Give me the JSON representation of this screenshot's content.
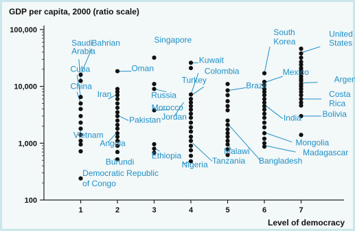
{
  "chart_data": {
    "type": "scatter",
    "ylabel": "GDP per capita, 2000 (ratio scale)",
    "xlabel": "Level of democracy",
    "y_scale": "log",
    "ylim": [
      100,
      100000
    ],
    "xlim": [
      0,
      7.6
    ],
    "x_ticks": [
      "1",
      "2",
      "3",
      "4",
      "5",
      "6",
      "7"
    ],
    "y_ticks": [
      "100",
      "1,000",
      "10,000",
      "100,000"
    ],
    "grid": false,
    "points": [
      {
        "x": 1,
        "y": 16000
      },
      {
        "x": 1,
        "y": 12500
      },
      {
        "x": 1,
        "y": 6500
      },
      {
        "x": 1,
        "y": 5000
      },
      {
        "x": 1,
        "y": 4000
      },
      {
        "x": 1,
        "y": 3000
      },
      {
        "x": 1,
        "y": 2300
      },
      {
        "x": 1,
        "y": 1800
      },
      {
        "x": 1,
        "y": 1400
      },
      {
        "x": 1,
        "y": 1100
      },
      {
        "x": 1,
        "y": 950
      },
      {
        "x": 1,
        "y": 720
      },
      {
        "x": 1,
        "y": 240
      },
      {
        "x": 2,
        "y": 18500
      },
      {
        "x": 2,
        "y": 9000
      },
      {
        "x": 2,
        "y": 8000
      },
      {
        "x": 2,
        "y": 7000
      },
      {
        "x": 2,
        "y": 6000
      },
      {
        "x": 2,
        "y": 5000
      },
      {
        "x": 2,
        "y": 4200
      },
      {
        "x": 2,
        "y": 3500
      },
      {
        "x": 2,
        "y": 3000
      },
      {
        "x": 2,
        "y": 2500
      },
      {
        "x": 2,
        "y": 2100
      },
      {
        "x": 2,
        "y": 1800
      },
      {
        "x": 2,
        "y": 1500
      },
      {
        "x": 2,
        "y": 1300
      },
      {
        "x": 2,
        "y": 1100
      },
      {
        "x": 2,
        "y": 900
      },
      {
        "x": 2,
        "y": 700
      },
      {
        "x": 2,
        "y": 520
      },
      {
        "x": 3,
        "y": 32000
      },
      {
        "x": 3,
        "y": 11000
      },
      {
        "x": 3,
        "y": 9000
      },
      {
        "x": 3,
        "y": 3800
      },
      {
        "x": 3,
        "y": 960
      },
      {
        "x": 3,
        "y": 800
      },
      {
        "x": 3,
        "y": 680
      },
      {
        "x": 4,
        "y": 26000
      },
      {
        "x": 4,
        "y": 21000
      },
      {
        "x": 4,
        "y": 7200
      },
      {
        "x": 4,
        "y": 6000
      },
      {
        "x": 4,
        "y": 5200
      },
      {
        "x": 4,
        "y": 4500
      },
      {
        "x": 4,
        "y": 3900
      },
      {
        "x": 4,
        "y": 3300
      },
      {
        "x": 4,
        "y": 2800
      },
      {
        "x": 4,
        "y": 2300
      },
      {
        "x": 4,
        "y": 1900
      },
      {
        "x": 4,
        "y": 1600
      },
      {
        "x": 4,
        "y": 1300
      },
      {
        "x": 4,
        "y": 1100
      },
      {
        "x": 4,
        "y": 900
      },
      {
        "x": 4,
        "y": 750
      },
      {
        "x": 4,
        "y": 600
      },
      {
        "x": 4,
        "y": 480
      },
      {
        "x": 5,
        "y": 11000
      },
      {
        "x": 5,
        "y": 8500
      },
      {
        "x": 5,
        "y": 7000
      },
      {
        "x": 5,
        "y": 5500
      },
      {
        "x": 5,
        "y": 4500
      },
      {
        "x": 5,
        "y": 3800
      },
      {
        "x": 5,
        "y": 2500
      },
      {
        "x": 5,
        "y": 2100
      },
      {
        "x": 5,
        "y": 1750
      },
      {
        "x": 5,
        "y": 1500
      },
      {
        "x": 5,
        "y": 1300
      },
      {
        "x": 5,
        "y": 1100
      },
      {
        "x": 5,
        "y": 950
      },
      {
        "x": 5,
        "y": 780
      },
      {
        "x": 5,
        "y": 620
      },
      {
        "x": 6,
        "y": 17000
      },
      {
        "x": 6,
        "y": 12000
      },
      {
        "x": 6,
        "y": 10500
      },
      {
        "x": 6,
        "y": 9000
      },
      {
        "x": 6,
        "y": 8000
      },
      {
        "x": 6,
        "y": 7000
      },
      {
        "x": 6,
        "y": 6000
      },
      {
        "x": 6,
        "y": 5200
      },
      {
        "x": 6,
        "y": 4500
      },
      {
        "x": 6,
        "y": 3900
      },
      {
        "x": 6,
        "y": 3300
      },
      {
        "x": 6,
        "y": 2800
      },
      {
        "x": 6,
        "y": 2300
      },
      {
        "x": 6,
        "y": 1900
      },
      {
        "x": 6,
        "y": 1500
      },
      {
        "x": 6,
        "y": 1200
      },
      {
        "x": 6,
        "y": 1000
      },
      {
        "x": 6,
        "y": 870
      },
      {
        "x": 7,
        "y": 46000
      },
      {
        "x": 7,
        "y": 38000
      },
      {
        "x": 7,
        "y": 32000
      },
      {
        "x": 7,
        "y": 27000
      },
      {
        "x": 7,
        "y": 24000
      },
      {
        "x": 7,
        "y": 21000
      },
      {
        "x": 7,
        "y": 19000
      },
      {
        "x": 7,
        "y": 17000
      },
      {
        "x": 7,
        "y": 15000
      },
      {
        "x": 7,
        "y": 13500
      },
      {
        "x": 7,
        "y": 12500
      },
      {
        "x": 7,
        "y": 11000
      },
      {
        "x": 7,
        "y": 10000
      },
      {
        "x": 7,
        "y": 9000
      },
      {
        "x": 7,
        "y": 8000
      },
      {
        "x": 7,
        "y": 7000
      },
      {
        "x": 7,
        "y": 6000
      },
      {
        "x": 7,
        "y": 5200
      },
      {
        "x": 7,
        "y": 4600
      },
      {
        "x": 7,
        "y": 3000
      },
      {
        "x": 7,
        "y": 1400
      }
    ],
    "annotations": [
      {
        "text": "Saudi",
        "x": 0.75,
        "y": 52000
      },
      {
        "text": "Arabia",
        "x": 0.75,
        "y": 37000
      },
      {
        "text": "Bahrian",
        "x": 1.3,
        "y": 52000
      },
      {
        "text": "Cuba",
        "x": 0.72,
        "y": 18000
      },
      {
        "text": "China",
        "x": 0.72,
        "y": 9000
      },
      {
        "text": "Vietnam",
        "x": 0.8,
        "y": 1250
      },
      {
        "text": "Democratic Republic",
        "x": 1.05,
        "y": 265
      },
      {
        "text": "of Congo",
        "x": 1.05,
        "y": 175
      },
      {
        "text": "Oman",
        "x": 2.38,
        "y": 18500
      },
      {
        "text": "Iran",
        "x": 1.45,
        "y": 6500
      },
      {
        "text": "Pakistan",
        "x": 2.32,
        "y": 2300
      },
      {
        "text": "Angola",
        "x": 1.52,
        "y": 890
      },
      {
        "text": "Burundi",
        "x": 1.68,
        "y": 420
      },
      {
        "text": "Singapore",
        "x": 3.0,
        "y": 59000
      },
      {
        "text": "Russia",
        "x": 2.92,
        "y": 6300
      },
      {
        "text": "Morocco",
        "x": 2.93,
        "y": 3800
      },
      {
        "text": "Jordan",
        "x": 3.2,
        "y": 2600
      },
      {
        "text": "Ethiopia",
        "x": 2.93,
        "y": 540
      },
      {
        "text": "Kuwait",
        "x": 4.22,
        "y": 26000
      },
      {
        "text": "Turkey",
        "x": 3.75,
        "y": 11500
      },
      {
        "text": "Colombia",
        "x": 4.37,
        "y": 16500
      },
      {
        "text": "Nigeria",
        "x": 3.75,
        "y": 375
      },
      {
        "text": "Tanzania",
        "x": 4.58,
        "y": 435
      },
      {
        "text": "Brazil",
        "x": 5.5,
        "y": 9300
      },
      {
        "text": "Malawi",
        "x": 4.9,
        "y": 650
      },
      {
        "text": "Bangladesh",
        "x": 5.85,
        "y": 435
      },
      {
        "text": "South",
        "x": 6.25,
        "y": 80000
      },
      {
        "text": "Korea",
        "x": 6.25,
        "y": 55000
      },
      {
        "text": "Mexico",
        "x": 6.5,
        "y": 16000
      },
      {
        "text": "India",
        "x": 6.52,
        "y": 2500
      },
      {
        "text": "Mongolia",
        "x": 6.85,
        "y": 920
      },
      {
        "text": "Madagascar",
        "x": 7.05,
        "y": 610
      },
      {
        "text": "United",
        "x": 7.76,
        "y": 75000
      },
      {
        "text": "States",
        "x": 7.76,
        "y": 52000
      },
      {
        "text": "Argentina",
        "x": 7.9,
        "y": 11800
      },
      {
        "text": "Costa",
        "x": 7.76,
        "y": 6500
      },
      {
        "text": "Rica",
        "x": 7.76,
        "y": 4500
      },
      {
        "text": "Bolivia",
        "x": 7.58,
        "y": 2900
      }
    ],
    "leader_lines": [
      [
        0.95,
        30000,
        1.0,
        12000
      ],
      [
        1.3,
        46000,
        1.0,
        16000
      ],
      [
        0.9,
        16000,
        1.0,
        6500
      ],
      [
        0.9,
        8000,
        1.0,
        5000
      ],
      [
        0.98,
        1250,
        1.0,
        1800
      ],
      [
        1.0,
        240,
        1.0,
        240
      ],
      [
        2.38,
        18500,
        2.05,
        18500
      ],
      [
        1.75,
        6000,
        1.95,
        7000
      ],
      [
        2.3,
        2500,
        2.05,
        3000
      ],
      [
        1.75,
        1050,
        1.97,
        1500
      ],
      [
        1.9,
        520,
        1.97,
        520
      ],
      [
        3.33,
        8000,
        3.0,
        9000
      ],
      [
        3.4,
        3900,
        3.05,
        3800
      ],
      [
        3.55,
        3000,
        3.8,
        5200
      ],
      [
        3.15,
        720,
        3.0,
        820
      ],
      [
        4.2,
        26000,
        4.05,
        26000
      ],
      [
        4.2,
        17000,
        4.0,
        7200
      ],
      [
        4.35,
        9800,
        4.05,
        7200
      ],
      [
        3.8,
        430,
        3.98,
        480
      ],
      [
        4.58,
        480,
        4.05,
        1000
      ],
      [
        5.5,
        9500,
        5.03,
        8500
      ],
      [
        5.1,
        760,
        5.0,
        1000
      ],
      [
        5.9,
        490,
        5.03,
        2100
      ],
      [
        6.15,
        50000,
        6.0,
        17000
      ],
      [
        6.5,
        15000,
        6.05,
        12000
      ],
      [
        6.5,
        2700,
        6.05,
        4500
      ],
      [
        6.75,
        1050,
        6.05,
        1500
      ],
      [
        6.85,
        700,
        6.05,
        900
      ],
      [
        7.52,
        50000,
        7.05,
        40000
      ],
      [
        7.45,
        11800,
        7.05,
        11500
      ],
      [
        7.55,
        6000,
        7.05,
        6000
      ],
      [
        7.55,
        3000,
        7.05,
        3000
      ]
    ]
  }
}
